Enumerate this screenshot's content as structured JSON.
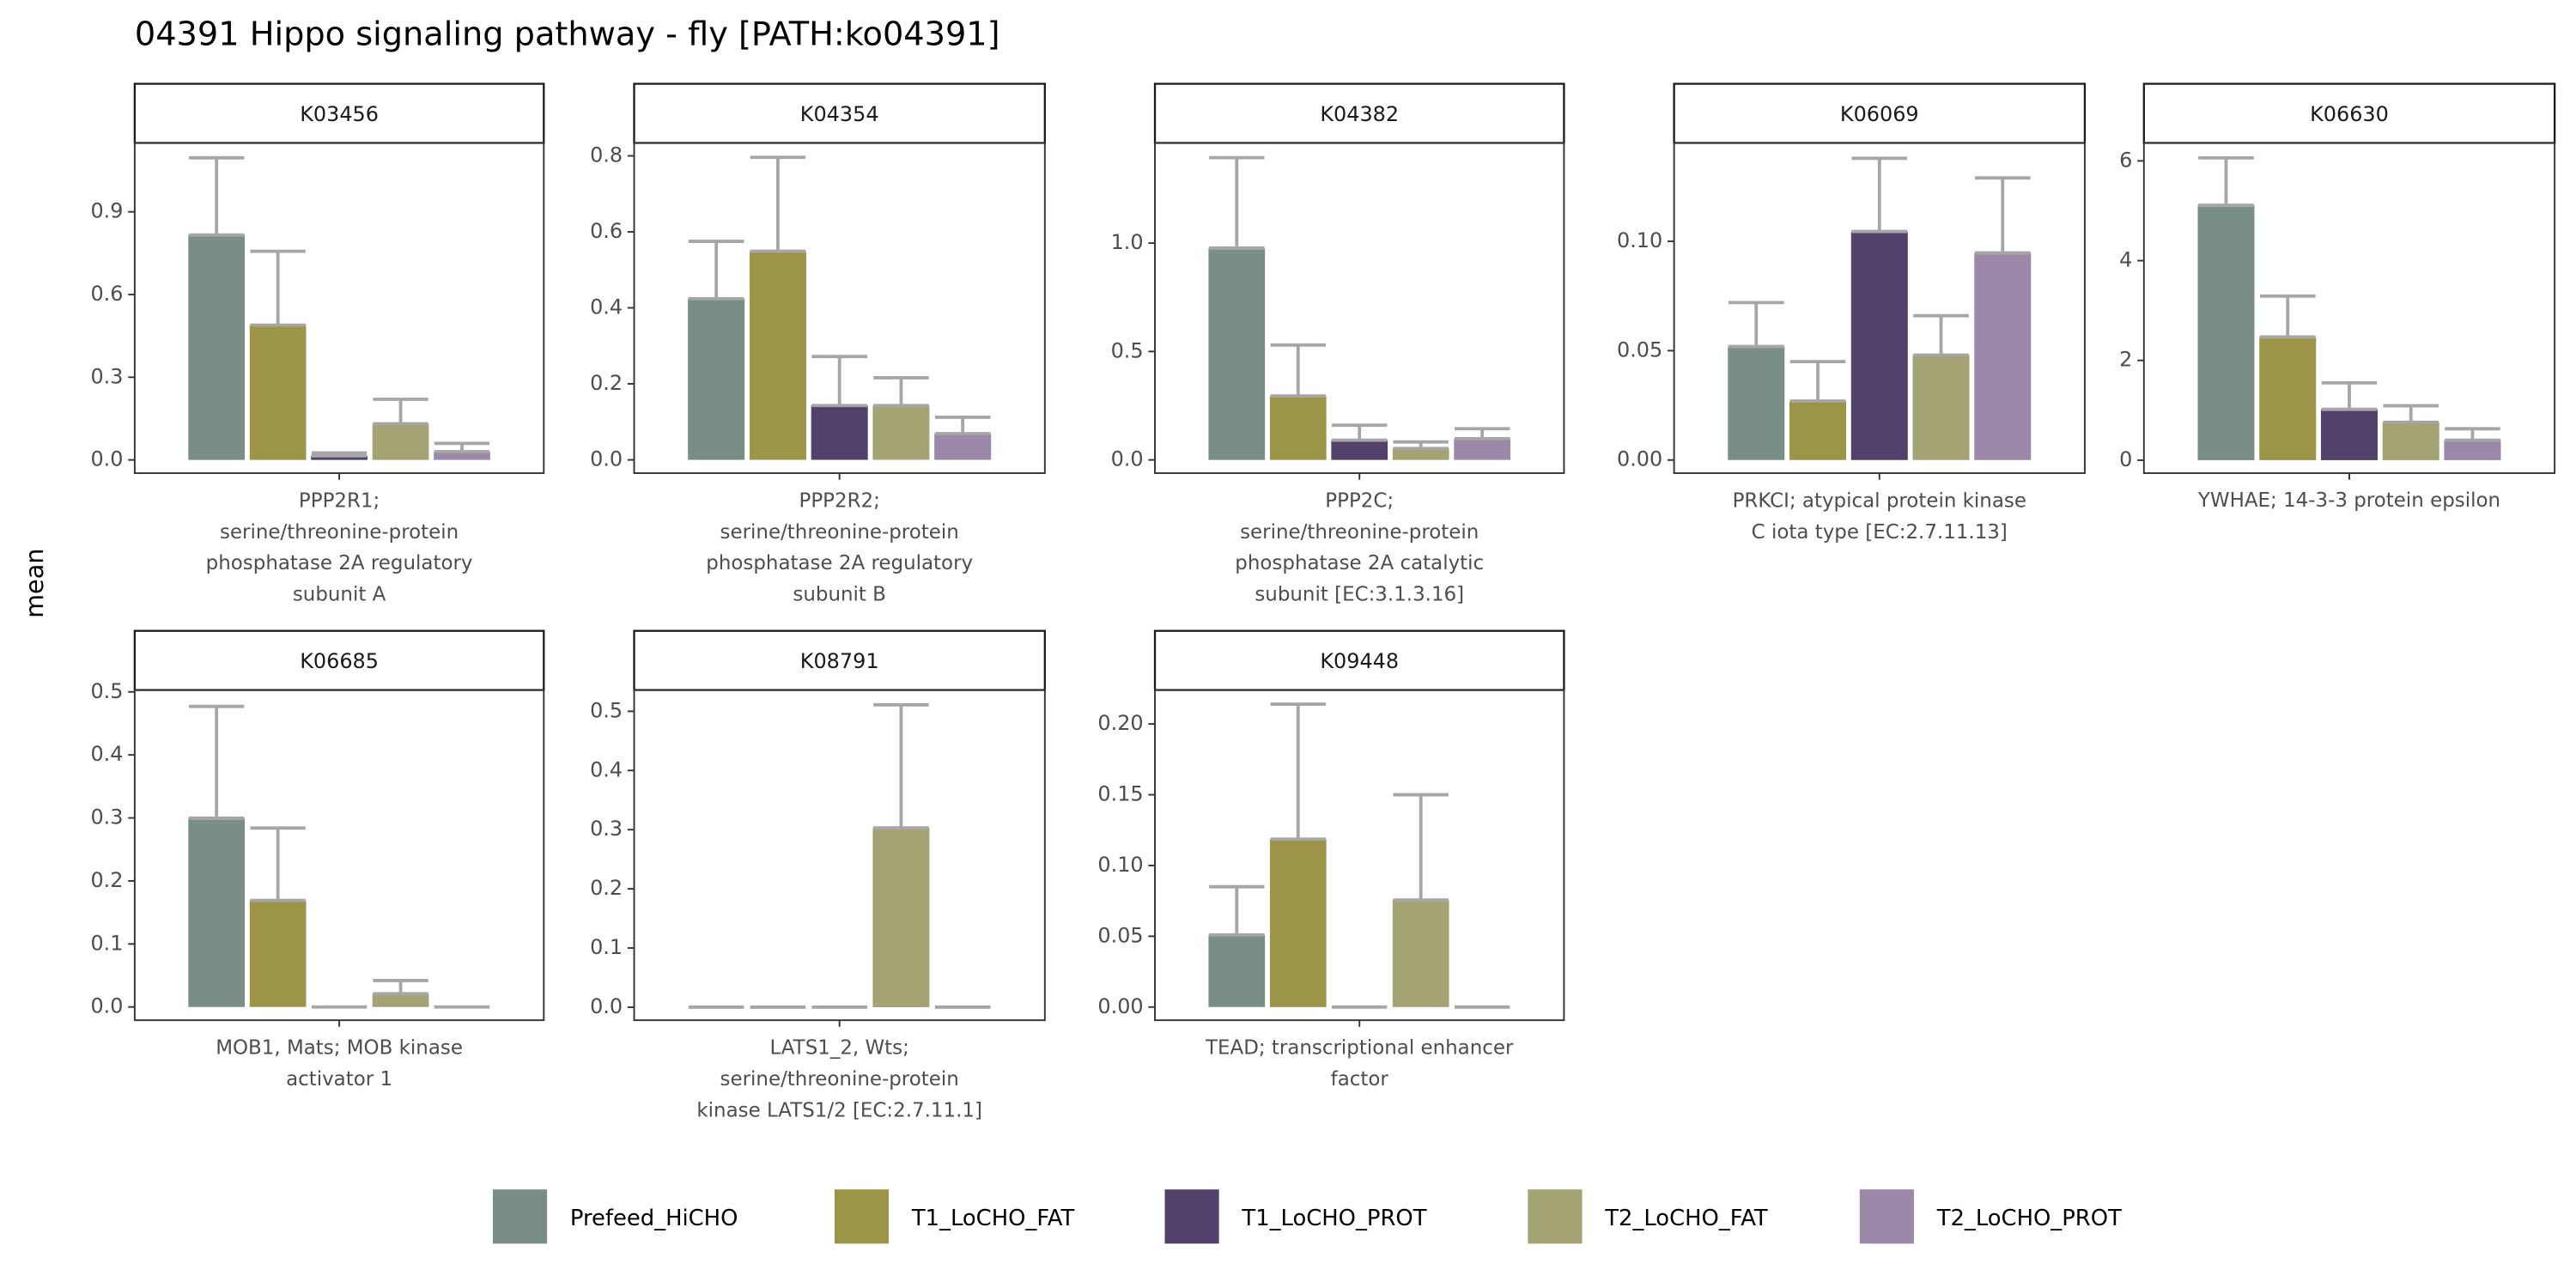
{
  "title": "04391 Hippo signaling pathway - fly [PATH:ko04391]",
  "y_label": "mean",
  "groups": [
    {
      "name": "Prefeed_HiCHO",
      "color": "#788e86"
    },
    {
      "name": "T1_LoCHO_FAT",
      "color": "#9c9548"
    },
    {
      "name": "T1_LoCHO_PROT",
      "color": "#52426b"
    },
    {
      "name": "T2_LoCHO_FAT",
      "color": "#a3a374"
    },
    {
      "name": "T2_LoCHO_PROT",
      "color": "#9c88a8"
    }
  ],
  "chart_data": [
    {
      "type": "bar",
      "title": "K03456",
      "x_label": "PPP2R1;\nserine/threonine-protein\nphosphatase 2A regulatory\nsubunit A",
      "values": [
        0.816,
        0.489,
        0.015,
        0.131,
        0.03
      ],
      "errors": [
        0.28,
        0.268,
        0.01,
        0.089,
        0.03
      ],
      "ylim": [
        -0.048,
        1.15
      ],
      "yticks": [
        {
          "value": 0,
          "label": "0.0"
        },
        {
          "value": 0.3,
          "label": "0.3"
        },
        {
          "value": 0.6,
          "label": "0.6"
        },
        {
          "value": 0.9,
          "label": "0.9"
        }
      ]
    },
    {
      "type": "bar",
      "title": "K04354",
      "x_label": "PPP2R2;\nserine/threonine-protein\nphosphatase 2A regulatory\nsubunit B",
      "values": [
        0.424,
        0.549,
        0.143,
        0.143,
        0.069
      ],
      "errors": [
        0.151,
        0.247,
        0.129,
        0.073,
        0.043
      ],
      "ylim": [
        -0.035,
        0.834
      ],
      "yticks": [
        {
          "value": 0,
          "label": "0.0"
        },
        {
          "value": 0.2,
          "label": "0.2"
        },
        {
          "value": 0.4,
          "label": "0.4"
        },
        {
          "value": 0.6,
          "label": "0.6"
        },
        {
          "value": 0.8,
          "label": "0.8"
        }
      ]
    },
    {
      "type": "bar",
      "title": "K04382",
      "x_label": "PPP2C;\nserine/threonine-protein\nphosphatase 2A catalytic\nsubunit [EC:3.1.3.16]",
      "values": [
        0.977,
        0.295,
        0.091,
        0.053,
        0.098
      ],
      "errors": [
        0.417,
        0.235,
        0.069,
        0.03,
        0.046
      ],
      "ylim": [
        -0.061,
        1.462
      ],
      "yticks": [
        {
          "value": 0,
          "label": "0.0"
        },
        {
          "value": 0.5,
          "label": "0.5"
        },
        {
          "value": 1,
          "label": "1.0"
        }
      ]
    },
    {
      "type": "bar",
      "title": "K06069",
      "x_label": "PRKCI; atypical protein kinase\nC iota type [EC:2.7.11.13]",
      "values": [
        0.0519,
        0.027,
        0.1045,
        0.048,
        0.0947
      ],
      "errors": [
        0.0201,
        0.018,
        0.0335,
        0.018,
        0.0343
      ],
      "ylim": [
        -0.006,
        0.145
      ],
      "yticks": [
        {
          "value": 0,
          "label": "0.00"
        },
        {
          "value": 0.05,
          "label": "0.05"
        },
        {
          "value": 0.1,
          "label": "0.10"
        }
      ]
    },
    {
      "type": "bar",
      "title": "K06630",
      "x_label": "YWHAE; 14-3-3 protein epsilon",
      "values": [
        5.11,
        2.47,
        1.02,
        0.76,
        0.4
      ],
      "errors": [
        0.95,
        0.82,
        0.53,
        0.33,
        0.23
      ],
      "ylim": [
        -0.26,
        6.36
      ],
      "yticks": [
        0,
        2,
        4,
        6
      ]
    },
    {
      "type": "bar",
      "title": "K06685",
      "x_label": "MOB1, Mats; MOB kinase\nactivator 1",
      "values": [
        0.2995,
        0.169,
        0,
        0.021,
        0
      ],
      "errors": [
        0.1775,
        0.115,
        0,
        0.021,
        0
      ],
      "ylim": [
        -0.021,
        0.503
      ],
      "yticks": [
        {
          "value": 0,
          "label": "0.0"
        },
        {
          "value": 0.1,
          "label": "0.1"
        },
        {
          "value": 0.2,
          "label": "0.2"
        },
        {
          "value": 0.3,
          "label": "0.3"
        },
        {
          "value": 0.4,
          "label": "0.4"
        },
        {
          "value": 0.5,
          "label": "0.5"
        }
      ]
    },
    {
      "type": "bar",
      "title": "K08791",
      "x_label": "LATS1_2, Wts;\nserine/threonine-protein\nkinase LATS1/2 [EC:2.7.11.1]",
      "values": [
        0,
        0,
        0,
        0.303,
        0
      ],
      "errors": [
        0,
        0,
        0,
        0.208,
        0
      ],
      "ylim": [
        -0.022,
        0.536
      ],
      "yticks": [
        {
          "value": 0,
          "label": "0.0"
        },
        {
          "value": 0.1,
          "label": "0.1"
        },
        {
          "value": 0.2,
          "label": "0.2"
        },
        {
          "value": 0.3,
          "label": "0.3"
        },
        {
          "value": 0.4,
          "label": "0.4"
        },
        {
          "value": 0.5,
          "label": "0.5"
        }
      ]
    },
    {
      "type": "bar",
      "title": "K09448",
      "x_label": "TEAD; transcriptional enhancer\nfactor",
      "values": [
        0.051,
        0.1186,
        0,
        0.0756,
        0
      ],
      "errors": [
        0.034,
        0.0954,
        0,
        0.0744,
        0
      ],
      "ylim": [
        -0.0093,
        0.224
      ],
      "yticks": [
        {
          "value": 0,
          "label": "0.00"
        },
        {
          "value": 0.05,
          "label": "0.05"
        },
        {
          "value": 0.1,
          "label": "0.10"
        },
        {
          "value": 0.15,
          "label": "0.15"
        },
        {
          "value": 0.2,
          "label": "0.20"
        }
      ]
    }
  ]
}
